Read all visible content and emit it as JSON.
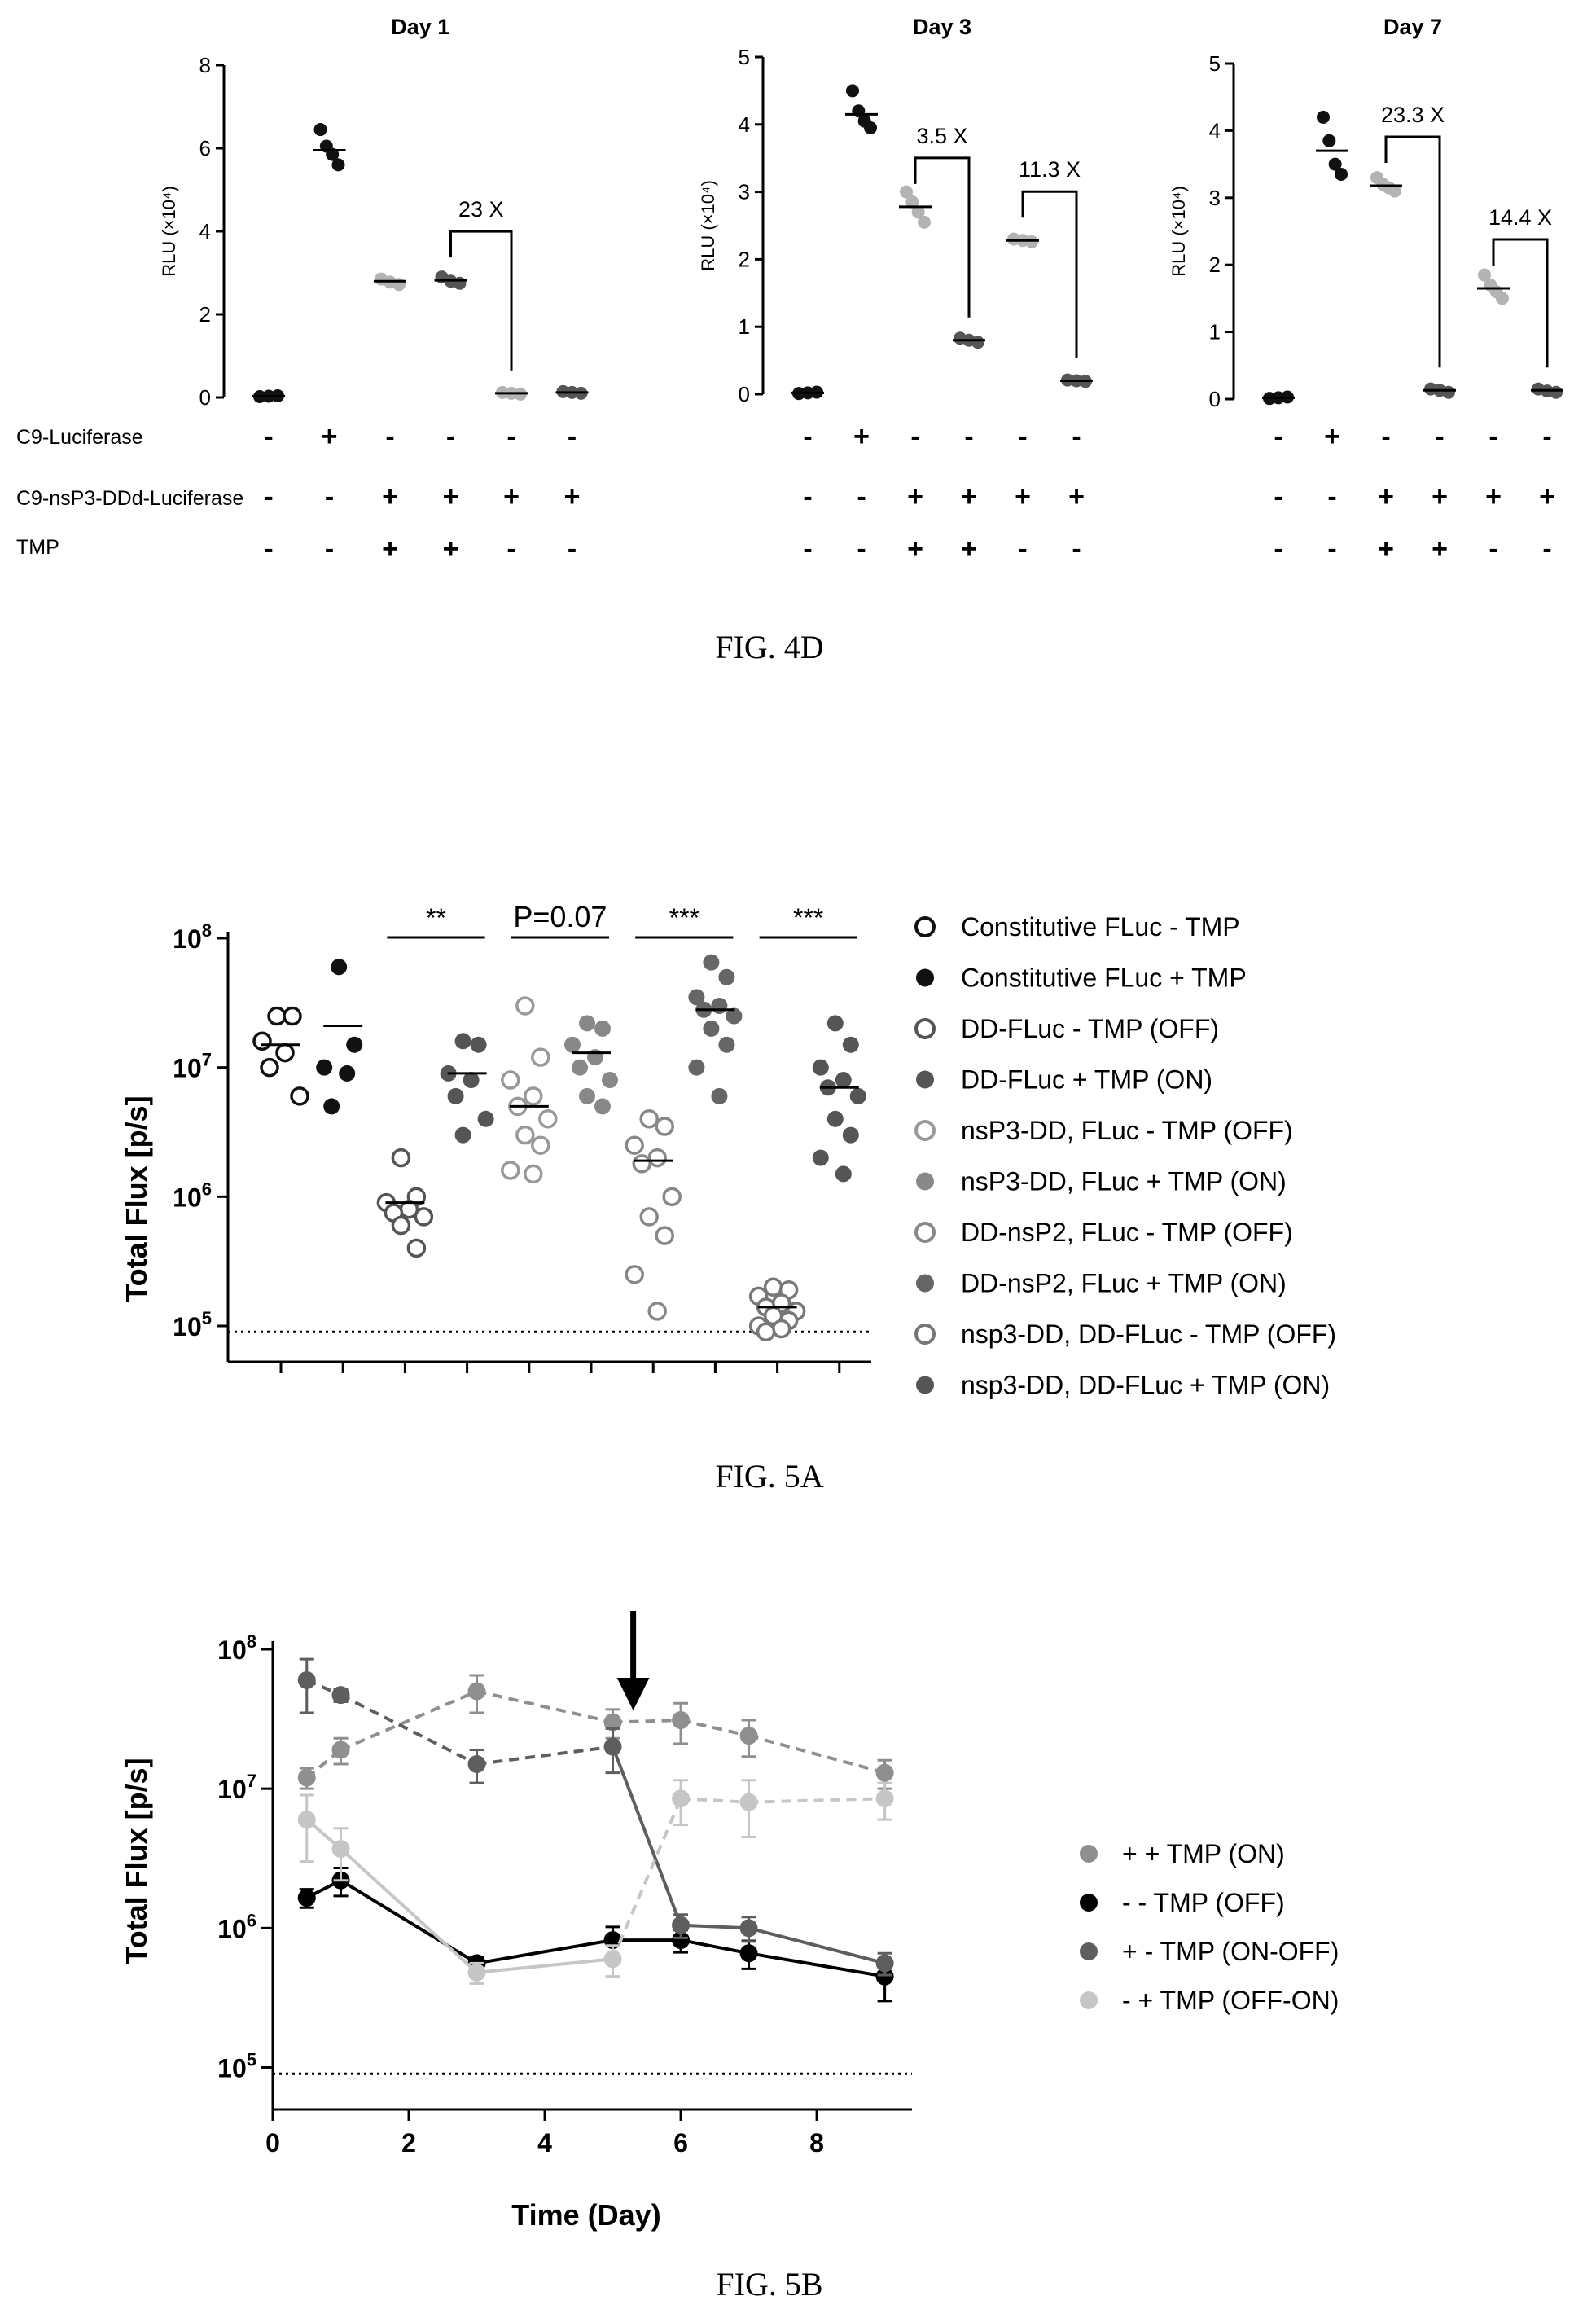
{
  "fig4d": {
    "caption": "FIG. 4D",
    "ylabel": "RLU (×10⁴)",
    "row_labels": [
      "C9-Luciferase",
      "C9-nsP3-DDd-Luciferase",
      "TMP"
    ],
    "conditions": {
      "C9-Luciferase": [
        "-",
        "+",
        "-",
        "-",
        "-",
        "-"
      ],
      "C9-nsP3-DDd-Luciferase": [
        "-",
        "-",
        "+",
        "+",
        "+",
        "+"
      ],
      "TMP": [
        "-",
        "-",
        "+",
        "+",
        "-",
        "-"
      ]
    },
    "colors": [
      "#111111",
      "#111111",
      "#b3b3b3",
      "#555555",
      "#b3b3b3",
      "#555555"
    ]
  },
  "chart_data": [
    {
      "type": "scatter",
      "title": "Day 1",
      "ylabel": "RLU (×10⁴)",
      "ylim": [
        0,
        8
      ],
      "yticks": [
        0,
        2,
        4,
        6,
        8
      ],
      "groups": [
        {
          "mean": 0.03,
          "points": [
            0.02,
            0.03,
            0.04
          ]
        },
        {
          "mean": 5.95,
          "points": [
            6.45,
            6.05,
            5.85,
            5.6
          ]
        },
        {
          "mean": 2.8,
          "points": [
            2.85,
            2.78,
            2.72
          ]
        },
        {
          "mean": 2.82,
          "points": [
            2.9,
            2.8,
            2.75
          ]
        },
        {
          "mean": 0.1,
          "points": [
            0.12,
            0.1,
            0.08
          ]
        },
        {
          "mean": 0.12,
          "points": [
            0.14,
            0.12,
            0.1
          ]
        }
      ],
      "annotations": [
        {
          "from": 3,
          "to": 4,
          "text": "23 X"
        }
      ]
    },
    {
      "type": "scatter",
      "title": "Day 3",
      "ylabel": "RLU (×10⁴)",
      "ylim": [
        0,
        5
      ],
      "yticks": [
        0,
        1,
        2,
        3,
        4,
        5
      ],
      "groups": [
        {
          "mean": 0.02,
          "points": [
            0.01,
            0.02,
            0.03
          ]
        },
        {
          "mean": 4.15,
          "points": [
            4.5,
            4.2,
            4.05,
            3.95
          ]
        },
        {
          "mean": 2.78,
          "points": [
            3.0,
            2.85,
            2.7,
            2.55
          ]
        },
        {
          "mean": 0.8,
          "points": [
            0.83,
            0.8,
            0.77
          ]
        },
        {
          "mean": 2.28,
          "points": [
            2.3,
            2.28,
            2.26
          ]
        },
        {
          "mean": 0.2,
          "points": [
            0.21,
            0.2,
            0.19
          ]
        }
      ],
      "annotations": [
        {
          "from": 2,
          "to": 3,
          "text": "3.5 X"
        },
        {
          "from": 4,
          "to": 5,
          "text": "11.3 X"
        }
      ]
    },
    {
      "type": "scatter",
      "title": "Day 7",
      "ylabel": "RLU (×10⁴)",
      "ylim": [
        0,
        5
      ],
      "yticks": [
        0,
        1,
        2,
        3,
        4,
        5
      ],
      "groups": [
        {
          "mean": 0.02,
          "points": [
            0.01,
            0.02,
            0.03
          ]
        },
        {
          "mean": 3.7,
          "points": [
            4.2,
            3.85,
            3.5,
            3.35
          ]
        },
        {
          "mean": 3.18,
          "points": [
            3.3,
            3.2,
            3.15,
            3.1
          ]
        },
        {
          "mean": 0.13,
          "points": [
            0.15,
            0.13,
            0.1
          ]
        },
        {
          "mean": 1.65,
          "points": [
            1.85,
            1.7,
            1.6,
            1.5
          ]
        },
        {
          "mean": 0.13,
          "points": [
            0.15,
            0.12,
            0.1
          ]
        }
      ],
      "annotations": [
        {
          "from": 2,
          "to": 3,
          "text": "23.3 X"
        },
        {
          "from": 4,
          "to": 5,
          "text": "14.4 X"
        }
      ]
    },
    {
      "type": "scatter",
      "title": "",
      "caption": "FIG. 5A",
      "ylabel": "Total Flux [p/s]",
      "yscale": "log",
      "ylim": [
        100000,
        100000000
      ],
      "yticks": [
        {
          "v": 100000,
          "m": "10",
          "e": "5"
        },
        {
          "v": 1000000,
          "m": "10",
          "e": "6"
        },
        {
          "v": 10000000,
          "m": "10",
          "e": "7"
        },
        {
          "v": 100000000,
          "m": "10",
          "e": "8"
        }
      ],
      "detection_limit": 90000,
      "legend_position": "right",
      "series": [
        {
          "name": "Constitutive FLuc - TMP",
          "color": "#111111",
          "filled": false,
          "mean": 15000000,
          "values": [
            25000000,
            25000000,
            16000000,
            13000000,
            10000000,
            6000000
          ]
        },
        {
          "name": "Constitutive FLuc + TMP",
          "color": "#111111",
          "filled": true,
          "mean": 21000000,
          "values": [
            60000000,
            15000000,
            10000000,
            9000000,
            5000000
          ]
        },
        {
          "name": "DD-FLuc - TMP (OFF)",
          "color": "#555555",
          "filled": false,
          "mean": 900000,
          "values": [
            2000000,
            1000000,
            900000,
            800000,
            750000,
            700000,
            600000,
            400000
          ]
        },
        {
          "name": "DD-FLuc + TMP (ON)",
          "color": "#555555",
          "filled": true,
          "mean": 9000000,
          "values": [
            16000000,
            15000000,
            9000000,
            8000000,
            6000000,
            4000000,
            3000000
          ]
        },
        {
          "name": "nsP3-DD, FLuc - TMP (OFF)",
          "color": "#999999",
          "filled": false,
          "mean": 5000000,
          "values": [
            30000000,
            12000000,
            8000000,
            6000000,
            5000000,
            4000000,
            3000000,
            2500000,
            1600000,
            1500000
          ]
        },
        {
          "name": "nsP3-DD, FLuc + TMP (ON)",
          "color": "#888888",
          "filled": true,
          "mean": 13000000,
          "values": [
            22000000,
            20000000,
            15000000,
            12000000,
            10000000,
            8000000,
            6000000,
            5000000
          ]
        },
        {
          "name": "DD-nsP2, FLuc - TMP (OFF)",
          "color": "#888888",
          "filled": false,
          "mean": 1900000,
          "values": [
            4000000,
            3500000,
            2500000,
            2000000,
            1800000,
            1000000,
            700000,
            500000,
            250000,
            130000
          ]
        },
        {
          "name": "DD-nsP2, FLuc + TMP (ON)",
          "color": "#666666",
          "filled": true,
          "mean": 28000000,
          "values": [
            65000000,
            50000000,
            35000000,
            30000000,
            28000000,
            25000000,
            20000000,
            15000000,
            10000000,
            6000000
          ]
        },
        {
          "name": "nsp3-DD, DD-FLuc - TMP (OFF)",
          "color": "#777777",
          "filled": false,
          "mean": 140000,
          "values": [
            200000,
            190000,
            170000,
            150000,
            140000,
            130000,
            120000,
            110000,
            100000,
            95000,
            90000
          ]
        },
        {
          "name": "nsp3-DD, DD-FLuc + TMP (ON)",
          "color": "#555555",
          "filled": true,
          "mean": 7000000,
          "values": [
            22000000,
            15000000,
            10000000,
            8000000,
            7000000,
            6000000,
            4000000,
            3000000,
            2000000,
            1500000
          ]
        }
      ],
      "annotations": [
        {
          "from": 2,
          "to": 3,
          "text": "**"
        },
        {
          "from": 4,
          "to": 5,
          "text": "P=0.07"
        },
        {
          "from": 6,
          "to": 7,
          "text": "***"
        },
        {
          "from": 8,
          "to": 9,
          "text": "***"
        }
      ]
    },
    {
      "type": "line",
      "title": "",
      "caption": "FIG. 5B",
      "xlabel": "Time (Day)",
      "ylabel": "Total Flux [p/s]",
      "xlim": [
        0,
        9.4
      ],
      "xticks": [
        0,
        2,
        4,
        6,
        8
      ],
      "yscale": "log",
      "ylim": [
        50000,
        100000000
      ],
      "yticks": [
        {
          "v": 100000,
          "m": "10",
          "e": "5"
        },
        {
          "v": 1000000,
          "m": "10",
          "e": "6"
        },
        {
          "v": 10000000,
          "m": "10",
          "e": "7"
        },
        {
          "v": 100000000,
          "m": "10",
          "e": "8"
        }
      ],
      "detection_limit": 90000,
      "arrow_day": 5.3,
      "legend_position": "right",
      "series": [
        {
          "name": "+ + TMP (ON)",
          "color": "#8f8f8f",
          "dashed": true,
          "x": [
            0.5,
            1,
            3,
            5,
            6,
            7,
            9
          ],
          "y": [
            12000000,
            19000000,
            50000000,
            30000000,
            31000000,
            24000000,
            13000000
          ],
          "err": [
            2000000,
            4000000,
            15000000,
            7000000,
            10000000,
            7000000,
            3000000
          ]
        },
        {
          "name": "- - TMP (OFF)",
          "color": "#000000",
          "dashed": false,
          "x": [
            0.5,
            1,
            3,
            5,
            6,
            7,
            9
          ],
          "y": [
            1650000,
            2200000,
            560000,
            820000,
            820000,
            660000,
            450000
          ],
          "err": [
            250000,
            500000,
            60000,
            200000,
            150000,
            150000,
            150000
          ]
        },
        {
          "name": "+ - TMP (ON-OFF)",
          "color": "#5e5e5e",
          "dashed": false,
          "dash_segment": [
            0,
            3
          ],
          "x": [
            0.5,
            1,
            3,
            5,
            6,
            7,
            9
          ],
          "y": [
            60000000,
            47000000,
            15000000,
            20000000,
            1050000,
            1000000,
            560000
          ],
          "err": [
            25000000,
            5000000,
            4000000,
            7000000,
            200000,
            200000,
            100000
          ]
        },
        {
          "name": "- + TMP (OFF-ON)",
          "color": "#c6c6c6",
          "dashed": false,
          "dash_segment": [
            3,
            6
          ],
          "x": [
            0.5,
            1,
            3,
            5,
            6,
            7,
            9
          ],
          "y": [
            6000000,
            3700000,
            480000,
            600000,
            8500000,
            8000000,
            8500000
          ],
          "err": [
            3000000,
            1500000,
            80000,
            150000,
            3000000,
            3500000,
            2500000
          ]
        }
      ]
    }
  ]
}
